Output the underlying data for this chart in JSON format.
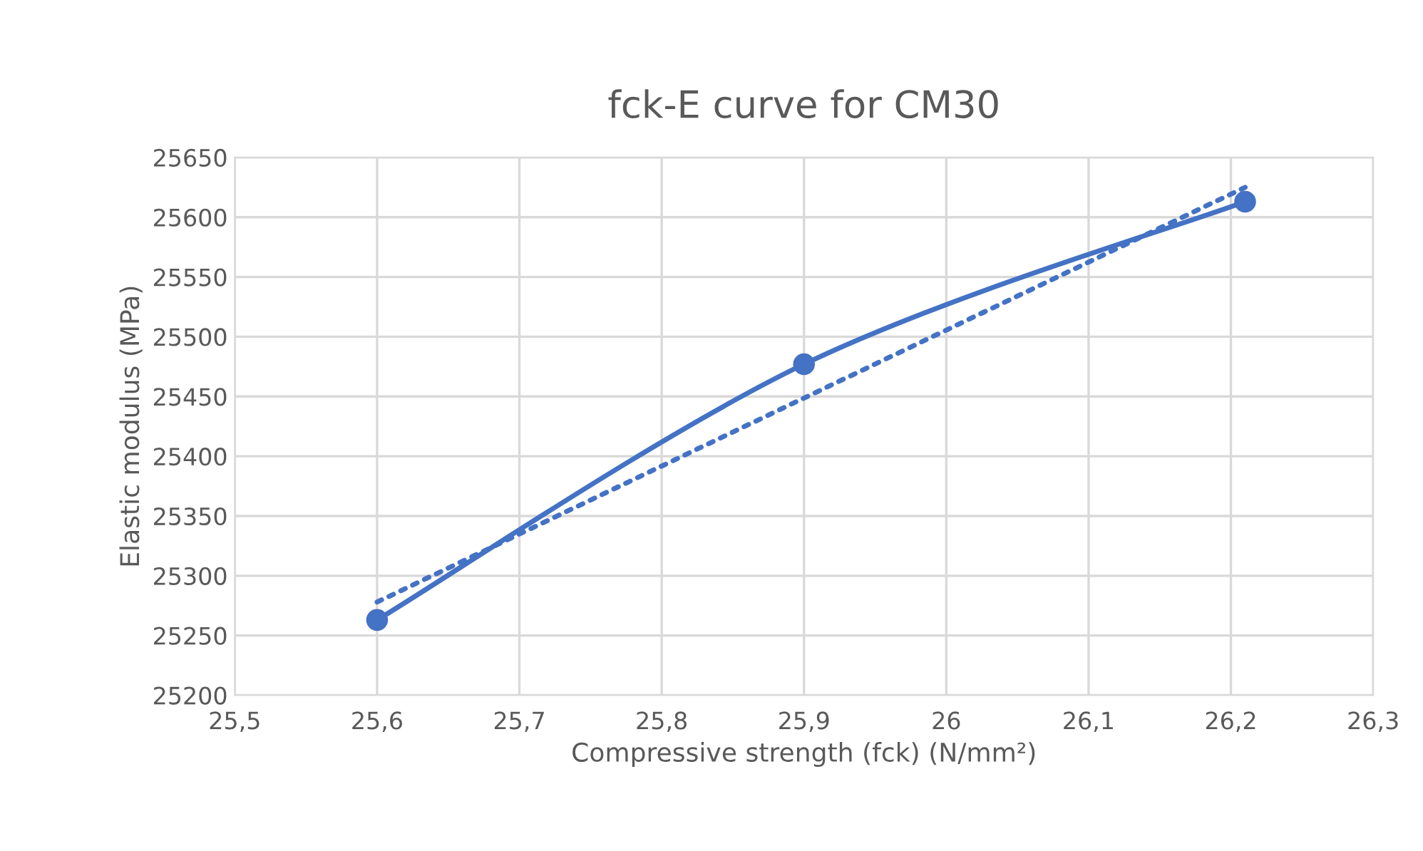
{
  "chart_data": {
    "type": "line",
    "title": "fck-E curve for CM30",
    "xlabel": "Compressive strength (fck) (N/mm²)",
    "ylabel": "Elastic modulus (MPa)",
    "xlim": [
      25.5,
      26.3
    ],
    "xticks": [
      {
        "value": 25.5,
        "label": "25,5"
      },
      {
        "value": 25.6,
        "label": "25,6"
      },
      {
        "value": 25.7,
        "label": "25,7"
      },
      {
        "value": 25.8,
        "label": "25,8"
      },
      {
        "value": 25.9,
        "label": "25,9"
      },
      {
        "value": 26,
        "label": "26"
      },
      {
        "value": 26.1,
        "label": "26,1"
      },
      {
        "value": 26.2,
        "label": "26,2"
      },
      {
        "value": 26.3,
        "label": "26,3"
      }
    ],
    "ylim": [
      25200,
      25650
    ],
    "yticks": [
      25200,
      25250,
      25300,
      25350,
      25400,
      25450,
      25500,
      25550,
      25600,
      25650
    ],
    "grid": true,
    "series": [
      {
        "color": "#4472c4",
        "x": [
          25.6,
          25.9,
          26.21
        ],
        "values": [
          25263,
          25477,
          25613
        ],
        "marker": "circle",
        "line_style": "solid"
      },
      {
        "color": "#4472c4",
        "x": [
          25.6,
          26.21
        ],
        "values": [
          25278,
          25625
        ],
        "marker": "none",
        "line_style": "dotted"
      }
    ]
  }
}
